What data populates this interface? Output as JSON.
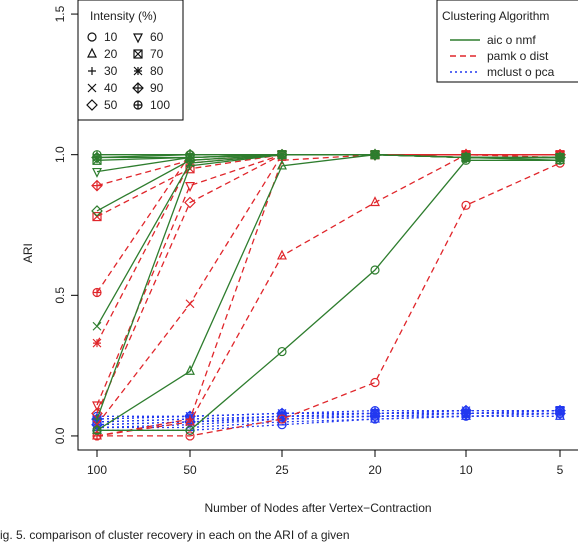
{
  "chart_data": {
    "type": "line",
    "xlabel": "Number of Nodes after Vertex−Contraction",
    "ylabel": "ARI",
    "categories": [
      "100",
      "50",
      "25",
      "20",
      "10",
      "5"
    ],
    "yticks": [
      "0.0",
      "0.5",
      "1.0",
      "1.5"
    ],
    "ylim": [
      -0.05,
      1.55
    ],
    "grid": false,
    "intensity_legend": {
      "title": "Intensity (%)",
      "placement": "top-left",
      "entries": [
        {
          "label": "10",
          "symbol": "circle"
        },
        {
          "label": "20",
          "symbol": "triangle"
        },
        {
          "label": "30",
          "symbol": "plus"
        },
        {
          "label": "40",
          "symbol": "cross"
        },
        {
          "label": "50",
          "symbol": "diamond"
        },
        {
          "label": "60",
          "symbol": "triangle-down"
        },
        {
          "label": "70",
          "symbol": "square-x"
        },
        {
          "label": "80",
          "symbol": "asterisk"
        },
        {
          "label": "90",
          "symbol": "diamond-plus"
        },
        {
          "label": "100",
          "symbol": "circle-plus"
        }
      ]
    },
    "algorithm_legend": {
      "title": "Clustering Algorithm",
      "placement": "top-right",
      "entries": [
        {
          "label": "aic o nmf",
          "color": "#2e7d2e",
          "dash": "solid"
        },
        {
          "label": "pamk o dist",
          "color": "#e0262b",
          "dash": "dashed"
        },
        {
          "label": "mclust o pca",
          "color": "#2238f0",
          "dash": "dotted"
        }
      ]
    },
    "series": [
      {
        "algorithm": "aic o nmf",
        "intensity": "10",
        "values": [
          0.02,
          0.02,
          0.3,
          0.59,
          0.98,
          0.98
        ]
      },
      {
        "algorithm": "aic o nmf",
        "intensity": "20",
        "values": [
          0.02,
          0.23,
          0.96,
          1.0,
          0.99,
          0.98
        ]
      },
      {
        "algorithm": "aic o nmf",
        "intensity": "30",
        "values": [
          0.06,
          0.96,
          1.0,
          1.0,
          0.99,
          0.99
        ]
      },
      {
        "algorithm": "aic o nmf",
        "intensity": "40",
        "values": [
          0.39,
          0.97,
          1.0,
          1.0,
          0.99,
          0.99
        ]
      },
      {
        "algorithm": "aic o nmf",
        "intensity": "50",
        "values": [
          0.8,
          0.98,
          1.0,
          1.0,
          0.99,
          0.99
        ]
      },
      {
        "algorithm": "aic o nmf",
        "intensity": "60",
        "values": [
          0.94,
          0.99,
          1.0,
          1.0,
          0.99,
          0.99
        ]
      },
      {
        "algorithm": "aic o nmf",
        "intensity": "70",
        "values": [
          0.98,
          0.99,
          1.0,
          1.0,
          0.99,
          0.99
        ]
      },
      {
        "algorithm": "aic o nmf",
        "intensity": "80",
        "values": [
          0.99,
          0.99,
          1.0,
          1.0,
          0.99,
          0.99
        ]
      },
      {
        "algorithm": "aic o nmf",
        "intensity": "90",
        "values": [
          0.99,
          1.0,
          1.0,
          1.0,
          0.99,
          0.99
        ]
      },
      {
        "algorithm": "aic o nmf",
        "intensity": "100",
        "values": [
          1.0,
          1.0,
          1.0,
          1.0,
          0.99,
          0.99
        ]
      },
      {
        "algorithm": "pamk o dist",
        "intensity": "10",
        "values": [
          0.0,
          0.0,
          0.06,
          0.19,
          0.82,
          0.97
        ]
      },
      {
        "algorithm": "pamk o dist",
        "intensity": "20",
        "values": [
          0.0,
          0.05,
          0.64,
          0.83,
          1.0,
          0.99
        ]
      },
      {
        "algorithm": "pamk o dist",
        "intensity": "30",
        "values": [
          0.0,
          0.06,
          0.98,
          1.0,
          1.0,
          1.0
        ]
      },
      {
        "algorithm": "pamk o dist",
        "intensity": "40",
        "values": [
          0.04,
          0.47,
          1.0,
          1.0,
          1.0,
          1.0
        ]
      },
      {
        "algorithm": "pamk o dist",
        "intensity": "50",
        "values": [
          0.08,
          0.83,
          1.0,
          1.0,
          1.0,
          1.0
        ]
      },
      {
        "algorithm": "pamk o dist",
        "intensity": "60",
        "values": [
          0.11,
          0.89,
          1.0,
          1.0,
          1.0,
          1.0
        ]
      },
      {
        "algorithm": "pamk o dist",
        "intensity": "70",
        "values": [
          0.78,
          0.95,
          1.0,
          1.0,
          1.0,
          1.0
        ]
      },
      {
        "algorithm": "pamk o dist",
        "intensity": "80",
        "values": [
          0.33,
          0.97,
          1.0,
          1.0,
          1.0,
          1.0
        ]
      },
      {
        "algorithm": "pamk o dist",
        "intensity": "90",
        "values": [
          0.89,
          0.98,
          1.0,
          1.0,
          1.0,
          1.0
        ]
      },
      {
        "algorithm": "pamk o dist",
        "intensity": "100",
        "values": [
          0.51,
          1.0,
          1.0,
          1.0,
          1.0,
          1.0
        ]
      },
      {
        "algorithm": "mclust o pca",
        "intensity": "10",
        "values": [
          0.02,
          0.02,
          0.04,
          0.06,
          0.07,
          0.08
        ]
      },
      {
        "algorithm": "mclust o pca",
        "intensity": "20",
        "values": [
          0.03,
          0.03,
          0.05,
          0.06,
          0.07,
          0.07
        ]
      },
      {
        "algorithm": "mclust o pca",
        "intensity": "30",
        "values": [
          0.03,
          0.04,
          0.06,
          0.07,
          0.07,
          0.08
        ]
      },
      {
        "algorithm": "mclust o pca",
        "intensity": "40",
        "values": [
          0.04,
          0.05,
          0.06,
          0.07,
          0.08,
          0.08
        ]
      },
      {
        "algorithm": "mclust o pca",
        "intensity": "50",
        "values": [
          0.04,
          0.05,
          0.07,
          0.07,
          0.08,
          0.08
        ]
      },
      {
        "algorithm": "mclust o pca",
        "intensity": "60",
        "values": [
          0.05,
          0.06,
          0.07,
          0.08,
          0.08,
          0.09
        ]
      },
      {
        "algorithm": "mclust o pca",
        "intensity": "70",
        "values": [
          0.05,
          0.06,
          0.07,
          0.08,
          0.08,
          0.09
        ]
      },
      {
        "algorithm": "mclust o pca",
        "intensity": "80",
        "values": [
          0.06,
          0.07,
          0.08,
          0.08,
          0.09,
          0.09
        ]
      },
      {
        "algorithm": "mclust o pca",
        "intensity": "90",
        "values": [
          0.06,
          0.07,
          0.08,
          0.08,
          0.09,
          0.09
        ]
      },
      {
        "algorithm": "mclust o pca",
        "intensity": "100",
        "values": [
          0.07,
          0.07,
          0.08,
          0.09,
          0.09,
          0.09
        ]
      }
    ]
  },
  "caption": "ig. 5. comparison of cluster recovery in each on the ARI of a given"
}
